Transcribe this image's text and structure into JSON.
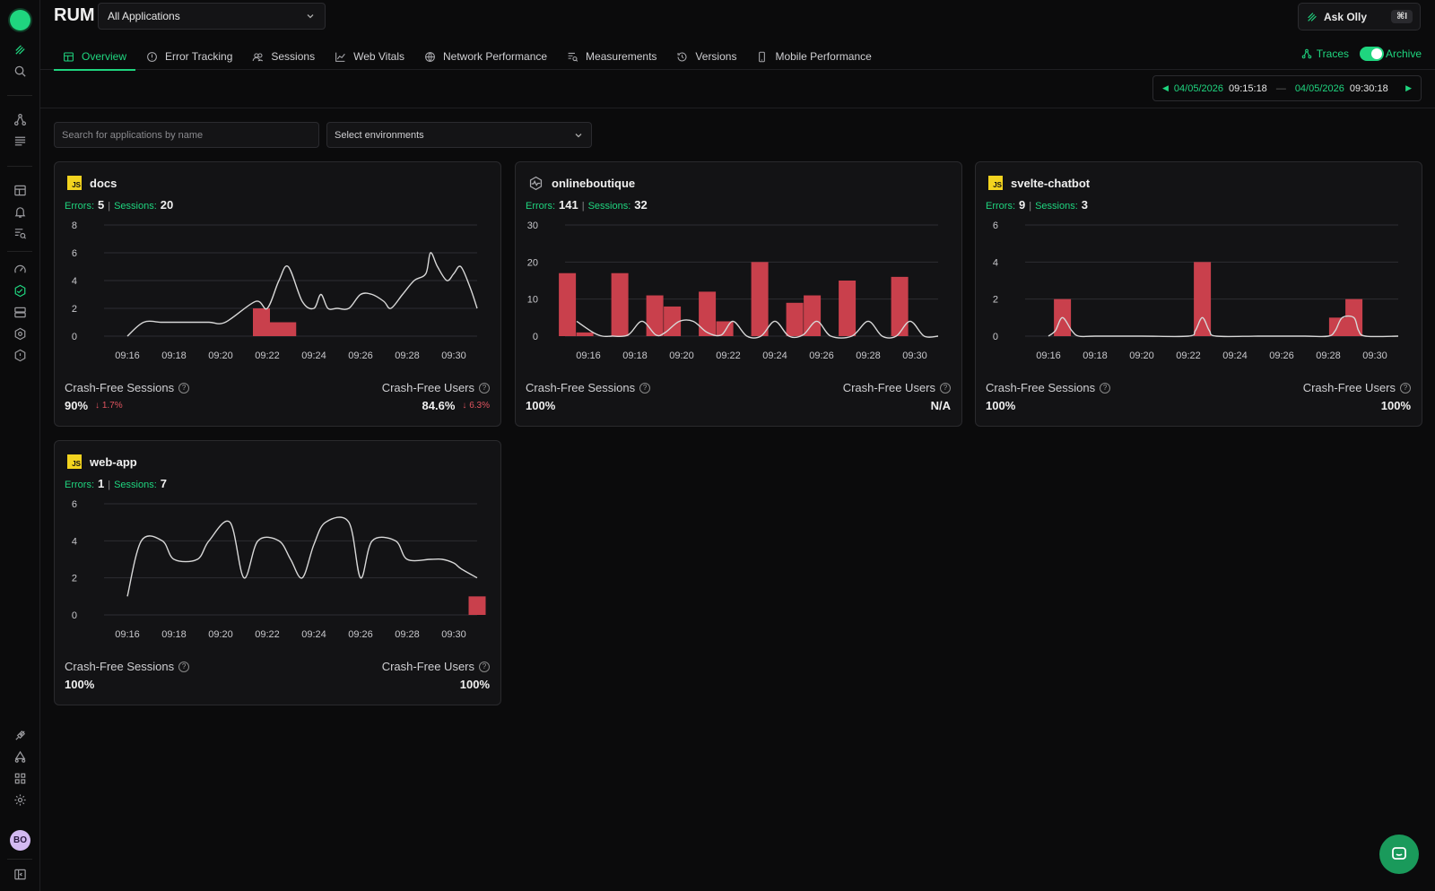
{
  "header": {
    "title": "RUM",
    "app_select": "All Applications",
    "ask_olly": "Ask Olly",
    "shortcut": "⌘I",
    "traces": "Traces",
    "archive": "Archive"
  },
  "tabs": [
    {
      "label": "Overview",
      "icon": "grid-icon",
      "active": true
    },
    {
      "label": "Error Tracking",
      "icon": "alert-circle-icon"
    },
    {
      "label": "Sessions",
      "icon": "users-icon"
    },
    {
      "label": "Web Vitals",
      "icon": "line-chart-icon"
    },
    {
      "label": "Network Performance",
      "icon": "globe-icon"
    },
    {
      "label": "Measurements",
      "icon": "list-search-icon"
    },
    {
      "label": "Versions",
      "icon": "history-icon"
    },
    {
      "label": "Mobile Performance",
      "icon": "mobile-icon"
    }
  ],
  "daterange": {
    "start_date": "04/05/2026",
    "start_time": "09:15:18",
    "end_date": "04/05/2026",
    "end_time": "09:30:18"
  },
  "filters": {
    "search_placeholder": "Search for applications by name",
    "env_placeholder": "Select environments"
  },
  "labels": {
    "errors": "Errors:",
    "sessions": "Sessions:",
    "crash_free_sessions": "Crash-Free Sessions",
    "crash_free_users": "Crash-Free Users"
  },
  "user_initials": "BO",
  "colors": {
    "accent": "#1fd57f",
    "bar": "#c9404c",
    "line": "#d8d8d8"
  },
  "apps": [
    {
      "name": "docs",
      "icon": "js",
      "errors": "5",
      "sessions": "20",
      "cf_sessions": "90%",
      "cf_sessions_delta": "1.7%",
      "cf_users": "84.6%",
      "cf_users_delta": "6.3%"
    },
    {
      "name": "onlineboutique",
      "icon": "wave",
      "errors": "141",
      "sessions": "32",
      "cf_sessions": "100%",
      "cf_sessions_delta": "",
      "cf_users": "N/A",
      "cf_users_delta": ""
    },
    {
      "name": "svelte-chatbot",
      "icon": "js",
      "errors": "9",
      "sessions": "3",
      "cf_sessions": "100%",
      "cf_sessions_delta": "",
      "cf_users": "100%",
      "cf_users_delta": ""
    },
    {
      "name": "web-app",
      "icon": "js",
      "errors": "1",
      "sessions": "7",
      "cf_sessions": "100%",
      "cf_sessions_delta": "",
      "cf_users": "100%",
      "cf_users_delta": ""
    }
  ],
  "chart_data": [
    {
      "type": "bar",
      "title": "docs",
      "x_labels": [
        "09:16",
        "09:18",
        "09:20",
        "09:22",
        "09:24",
        "09:26",
        "09:28",
        "09:30"
      ],
      "yticks": [
        0,
        2,
        4,
        6,
        8
      ],
      "ylim": [
        0,
        8
      ],
      "bars": [
        {
          "x": 9.75,
          "y": 2
        },
        {
          "x": 10.125,
          "y": 1
        },
        {
          "x": 10.5,
          "y": 1
        },
        {
          "x": 10.875,
          "y": 1
        }
      ],
      "line": [
        [
          4,
          0
        ],
        [
          4.7,
          1
        ],
        [
          5.5,
          1
        ],
        [
          6.5,
          1
        ],
        [
          7.5,
          1
        ],
        [
          8.2,
          1
        ],
        [
          9.5,
          2.5
        ],
        [
          10,
          2
        ],
        [
          10.5,
          4
        ],
        [
          10.9,
          5
        ],
        [
          11.5,
          2.5
        ],
        [
          12,
          2
        ],
        [
          12.3,
          3
        ],
        [
          12.6,
          2
        ],
        [
          13,
          2
        ],
        [
          13.5,
          2
        ],
        [
          14,
          3
        ],
        [
          14.5,
          3
        ],
        [
          15,
          2.5
        ],
        [
          15.3,
          2
        ],
        [
          15.8,
          3
        ],
        [
          16.3,
          4
        ],
        [
          16.8,
          4.5
        ],
        [
          17,
          6
        ],
        [
          17.3,
          5
        ],
        [
          17.7,
          4
        ],
        [
          18,
          4.5
        ],
        [
          18.3,
          5
        ],
        [
          18.7,
          3.5
        ],
        [
          19,
          2
        ]
      ]
    },
    {
      "type": "bar",
      "title": "onlineboutique",
      "x_labels": [
        "09:16",
        "09:18",
        "09:20",
        "09:22",
        "09:24",
        "09:26",
        "09:28",
        "09:30"
      ],
      "yticks": [
        0,
        10,
        20,
        30
      ],
      "ylim": [
        0,
        30
      ],
      "bars": [
        {
          "x": 3.1,
          "y": 17
        },
        {
          "x": 3.85,
          "y": 1
        },
        {
          "x": 5.35,
          "y": 17
        },
        {
          "x": 6.85,
          "y": 11
        },
        {
          "x": 7.6,
          "y": 8
        },
        {
          "x": 9.1,
          "y": 12
        },
        {
          "x": 9.85,
          "y": 4
        },
        {
          "x": 11.35,
          "y": 20
        },
        {
          "x": 12.85,
          "y": 9
        },
        {
          "x": 13.6,
          "y": 11
        },
        {
          "x": 15.1,
          "y": 15
        },
        {
          "x": 17.35,
          "y": 16
        }
      ],
      "line": [
        [
          3.5,
          4
        ],
        [
          4.2,
          1
        ],
        [
          4.6,
          0
        ],
        [
          5,
          0
        ],
        [
          5.7,
          0.3
        ],
        [
          6.3,
          4
        ],
        [
          6.9,
          0.3
        ],
        [
          7.3,
          1
        ],
        [
          7.9,
          4
        ],
        [
          8.5,
          4
        ],
        [
          9.1,
          1
        ],
        [
          9.7,
          0.3
        ],
        [
          10.2,
          4
        ],
        [
          10.8,
          0
        ],
        [
          11.4,
          0
        ],
        [
          12,
          4
        ],
        [
          12.6,
          0
        ],
        [
          13.2,
          0.3
        ],
        [
          13.8,
          4
        ],
        [
          14.4,
          0
        ],
        [
          15.3,
          0
        ],
        [
          16,
          4
        ],
        [
          16.6,
          0
        ],
        [
          17.2,
          0
        ],
        [
          17.8,
          4
        ],
        [
          18.4,
          0
        ],
        [
          19,
          0
        ]
      ]
    },
    {
      "type": "bar",
      "title": "svelte-chatbot",
      "x_labels": [
        "09:16",
        "09:18",
        "09:20",
        "09:22",
        "09:24",
        "09:26",
        "09:28",
        "09:30"
      ],
      "yticks": [
        0,
        2,
        4,
        6
      ],
      "ylim": [
        0,
        6
      ],
      "bars": [
        {
          "x": 4.6,
          "y": 2
        },
        {
          "x": 10.6,
          "y": 4
        },
        {
          "x": 16.4,
          "y": 1
        },
        {
          "x": 17.1,
          "y": 2
        }
      ],
      "line": [
        [
          4,
          0
        ],
        [
          4.3,
          0.3
        ],
        [
          4.6,
          1
        ],
        [
          5,
          0.3
        ],
        [
          5.3,
          0
        ],
        [
          6,
          0
        ],
        [
          8,
          0
        ],
        [
          10,
          0
        ],
        [
          10.3,
          0.3
        ],
        [
          10.6,
          1
        ],
        [
          10.9,
          0.3
        ],
        [
          11.2,
          0
        ],
        [
          13,
          0
        ],
        [
          15,
          0
        ],
        [
          16,
          0
        ],
        [
          16.3,
          0.3
        ],
        [
          16.6,
          1
        ],
        [
          17.1,
          1
        ],
        [
          17.3,
          0.3
        ],
        [
          17.6,
          0
        ],
        [
          19,
          0
        ]
      ]
    },
    {
      "type": "bar",
      "title": "web-app",
      "x_labels": [
        "09:16",
        "09:18",
        "09:20",
        "09:22",
        "09:24",
        "09:26",
        "09:28",
        "09:30"
      ],
      "yticks": [
        0,
        2,
        4,
        6
      ],
      "ylim": [
        0,
        6
      ],
      "bars": [
        {
          "x": 19,
          "y": 1
        }
      ],
      "line": [
        [
          4,
          1
        ],
        [
          4.6,
          4
        ],
        [
          5.5,
          4
        ],
        [
          6,
          3
        ],
        [
          7,
          3
        ],
        [
          7.5,
          4
        ],
        [
          8.4,
          5
        ],
        [
          9,
          2
        ],
        [
          9.6,
          4
        ],
        [
          10.5,
          4
        ],
        [
          11,
          3
        ],
        [
          11.5,
          2
        ],
        [
          12,
          3.8
        ],
        [
          12.5,
          5
        ],
        [
          13.5,
          5
        ],
        [
          14,
          2
        ],
        [
          14.5,
          4
        ],
        [
          15.5,
          4
        ],
        [
          16,
          3
        ],
        [
          17,
          3
        ],
        [
          17.5,
          3
        ],
        [
          18,
          2.8
        ],
        [
          18.3,
          2.5
        ],
        [
          19,
          2
        ]
      ]
    }
  ]
}
